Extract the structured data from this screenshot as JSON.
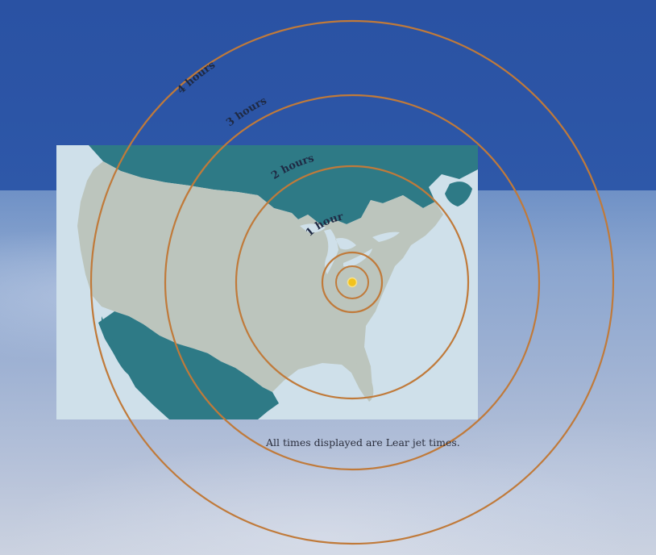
{
  "map": {
    "rings": [
      {
        "label": "1 hour"
      },
      {
        "label": "2 hours"
      },
      {
        "label": "3 hours"
      },
      {
        "label": "4 hours"
      }
    ],
    "caption": "All times displayed are Lear jet times.",
    "colors": {
      "sky": "#2a52a3",
      "water": "#cfe0ea",
      "land": "#bcc5bd",
      "foreign_land": "#2e7a86",
      "rings": "#c07a3a",
      "origin_marker": "#f2c21c"
    },
    "origin_marker_icon": "origin-dot-icon"
  }
}
